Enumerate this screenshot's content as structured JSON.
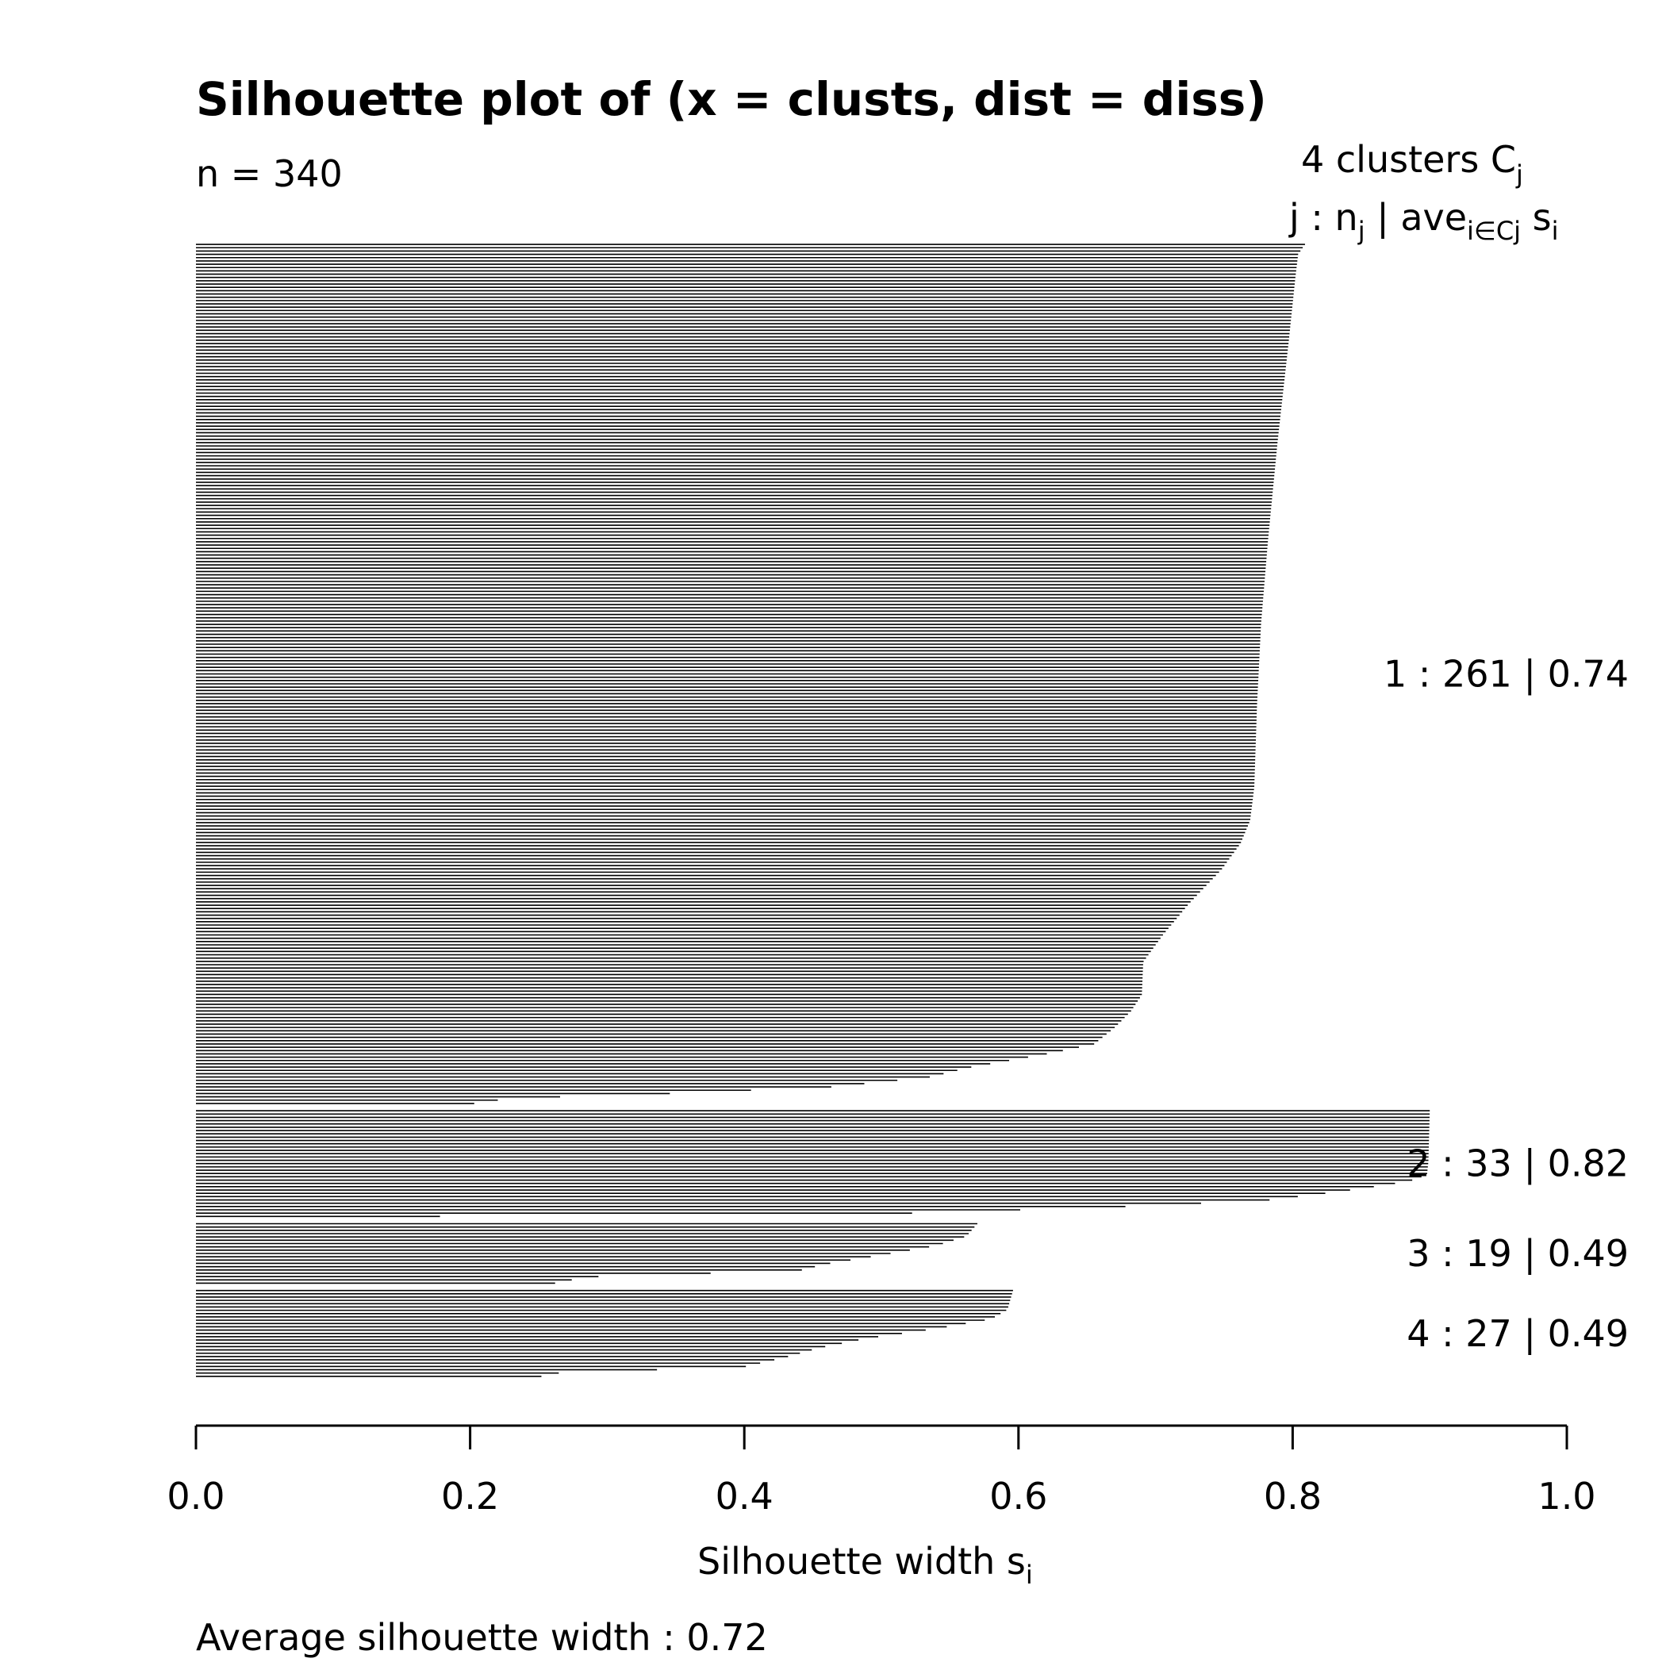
{
  "chart_data": {
    "type": "bar",
    "orientation": "horizontal",
    "title": "Silhouette plot of (x = clusts, dist = diss)",
    "subtitle": "n = 340",
    "legend_header": {
      "line1_prefix": "4  clusters  C",
      "line1_sub": "j",
      "line2_a": "j :  n",
      "line2_a_sub": "j",
      "line2_b": " | ave",
      "line2_b_sub": "i∈Cj",
      "line2_c": "  s",
      "line2_c_sub": "i"
    },
    "xlabel": "Silhouette width s",
    "xlabel_sub": "i",
    "xlim": [
      0,
      1
    ],
    "x_ticks": [
      0.0,
      0.2,
      0.4,
      0.6,
      0.8,
      1.0
    ],
    "x_tick_labels": [
      "0.0",
      "0.2",
      "0.4",
      "0.6",
      "0.8",
      "1.0"
    ],
    "footer": "Average silhouette width :  0.72",
    "bar_color": "#000000",
    "clusters": [
      {
        "label": "1 :   261  |  0.74",
        "n": 261,
        "avg_width": 0.74,
        "profile": [
          [
            0,
            0.809
          ],
          [
            3,
            0.804
          ],
          [
            10,
            0.802
          ],
          [
            30,
            0.797
          ],
          [
            60,
            0.789
          ],
          [
            90,
            0.782
          ],
          [
            115,
            0.777
          ],
          [
            140,
            0.774
          ],
          [
            165,
            0.772
          ],
          [
            175,
            0.769
          ],
          [
            182,
            0.762
          ],
          [
            190,
            0.748
          ],
          [
            200,
            0.725
          ],
          [
            210,
            0.705
          ],
          [
            218,
            0.691
          ],
          [
            228,
            0.69
          ],
          [
            233,
            0.682
          ],
          [
            238,
            0.67
          ],
          [
            243,
            0.655
          ],
          [
            246,
            0.62
          ],
          [
            250,
            0.565
          ],
          [
            253,
            0.535
          ],
          [
            256,
            0.463
          ],
          [
            258,
            0.345
          ],
          [
            259,
            0.265
          ],
          [
            260,
            0.22
          ],
          [
            261,
            0.203
          ]
        ]
      },
      {
        "label": "2 :   33  |  0.82",
        "n": 33,
        "avg_width": 0.82,
        "profile": [
          [
            0,
            0.9
          ],
          [
            16,
            0.899
          ],
          [
            20,
            0.898
          ],
          [
            22,
            0.885
          ],
          [
            24,
            0.855
          ],
          [
            26,
            0.82
          ],
          [
            28,
            0.78
          ],
          [
            30,
            0.673
          ],
          [
            32,
            0.52
          ],
          [
            33,
            0.178
          ]
        ]
      },
      {
        "label": "3 :   19  |  0.49",
        "n": 19,
        "avg_width": 0.49,
        "profile": [
          [
            0,
            0.57
          ],
          [
            4,
            0.562
          ],
          [
            7,
            0.54
          ],
          [
            10,
            0.5
          ],
          [
            13,
            0.458
          ],
          [
            15,
            0.44
          ],
          [
            17,
            0.285
          ],
          [
            19,
            0.262
          ]
        ]
      },
      {
        "label": "4 :   27  |  0.49",
        "n": 27,
        "avg_width": 0.49,
        "profile": [
          [
            0,
            0.596
          ],
          [
            6,
            0.592
          ],
          [
            9,
            0.58
          ],
          [
            12,
            0.54
          ],
          [
            15,
            0.49
          ],
          [
            18,
            0.455
          ],
          [
            21,
            0.43
          ],
          [
            24,
            0.4
          ],
          [
            26,
            0.262
          ],
          [
            27,
            0.252
          ]
        ]
      }
    ]
  }
}
